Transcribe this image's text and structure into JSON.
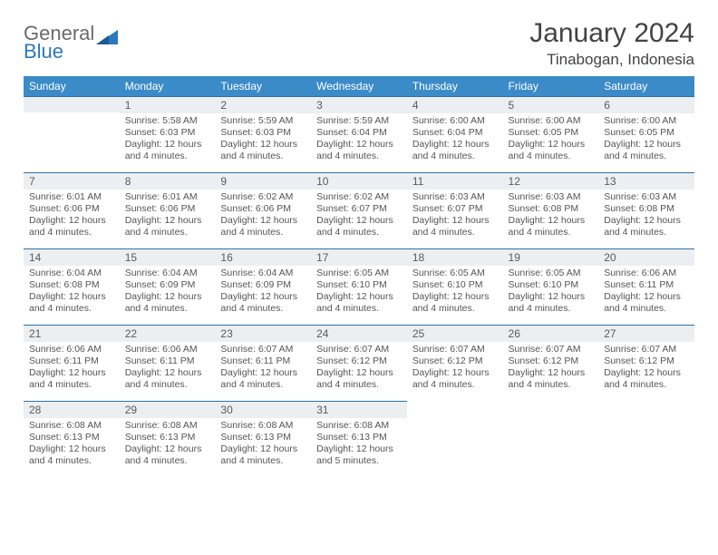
{
  "logo": {
    "word1": "General",
    "word2": "Blue"
  },
  "title": "January 2024",
  "location": "Tinabogan, Indonesia",
  "colors": {
    "header_bg": "#3b8bc9",
    "header_text": "#ffffff",
    "daynum_bg": "#eceff1",
    "row_border": "#2f6fa8",
    "body_text": "#555555",
    "logo_gray": "#6a6a6a",
    "logo_blue": "#2b78bf"
  },
  "weekdays": [
    "Sunday",
    "Monday",
    "Tuesday",
    "Wednesday",
    "Thursday",
    "Friday",
    "Saturday"
  ],
  "start_offset": 1,
  "days": [
    {
      "n": 1,
      "sunrise": "5:58 AM",
      "sunset": "6:03 PM",
      "daylight": "12 hours and 4 minutes."
    },
    {
      "n": 2,
      "sunrise": "5:59 AM",
      "sunset": "6:03 PM",
      "daylight": "12 hours and 4 minutes."
    },
    {
      "n": 3,
      "sunrise": "5:59 AM",
      "sunset": "6:04 PM",
      "daylight": "12 hours and 4 minutes."
    },
    {
      "n": 4,
      "sunrise": "6:00 AM",
      "sunset": "6:04 PM",
      "daylight": "12 hours and 4 minutes."
    },
    {
      "n": 5,
      "sunrise": "6:00 AM",
      "sunset": "6:05 PM",
      "daylight": "12 hours and 4 minutes."
    },
    {
      "n": 6,
      "sunrise": "6:00 AM",
      "sunset": "6:05 PM",
      "daylight": "12 hours and 4 minutes."
    },
    {
      "n": 7,
      "sunrise": "6:01 AM",
      "sunset": "6:06 PM",
      "daylight": "12 hours and 4 minutes."
    },
    {
      "n": 8,
      "sunrise": "6:01 AM",
      "sunset": "6:06 PM",
      "daylight": "12 hours and 4 minutes."
    },
    {
      "n": 9,
      "sunrise": "6:02 AM",
      "sunset": "6:06 PM",
      "daylight": "12 hours and 4 minutes."
    },
    {
      "n": 10,
      "sunrise": "6:02 AM",
      "sunset": "6:07 PM",
      "daylight": "12 hours and 4 minutes."
    },
    {
      "n": 11,
      "sunrise": "6:03 AM",
      "sunset": "6:07 PM",
      "daylight": "12 hours and 4 minutes."
    },
    {
      "n": 12,
      "sunrise": "6:03 AM",
      "sunset": "6:08 PM",
      "daylight": "12 hours and 4 minutes."
    },
    {
      "n": 13,
      "sunrise": "6:03 AM",
      "sunset": "6:08 PM",
      "daylight": "12 hours and 4 minutes."
    },
    {
      "n": 14,
      "sunrise": "6:04 AM",
      "sunset": "6:08 PM",
      "daylight": "12 hours and 4 minutes."
    },
    {
      "n": 15,
      "sunrise": "6:04 AM",
      "sunset": "6:09 PM",
      "daylight": "12 hours and 4 minutes."
    },
    {
      "n": 16,
      "sunrise": "6:04 AM",
      "sunset": "6:09 PM",
      "daylight": "12 hours and 4 minutes."
    },
    {
      "n": 17,
      "sunrise": "6:05 AM",
      "sunset": "6:10 PM",
      "daylight": "12 hours and 4 minutes."
    },
    {
      "n": 18,
      "sunrise": "6:05 AM",
      "sunset": "6:10 PM",
      "daylight": "12 hours and 4 minutes."
    },
    {
      "n": 19,
      "sunrise": "6:05 AM",
      "sunset": "6:10 PM",
      "daylight": "12 hours and 4 minutes."
    },
    {
      "n": 20,
      "sunrise": "6:06 AM",
      "sunset": "6:11 PM",
      "daylight": "12 hours and 4 minutes."
    },
    {
      "n": 21,
      "sunrise": "6:06 AM",
      "sunset": "6:11 PM",
      "daylight": "12 hours and 4 minutes."
    },
    {
      "n": 22,
      "sunrise": "6:06 AM",
      "sunset": "6:11 PM",
      "daylight": "12 hours and 4 minutes."
    },
    {
      "n": 23,
      "sunrise": "6:07 AM",
      "sunset": "6:11 PM",
      "daylight": "12 hours and 4 minutes."
    },
    {
      "n": 24,
      "sunrise": "6:07 AM",
      "sunset": "6:12 PM",
      "daylight": "12 hours and 4 minutes."
    },
    {
      "n": 25,
      "sunrise": "6:07 AM",
      "sunset": "6:12 PM",
      "daylight": "12 hours and 4 minutes."
    },
    {
      "n": 26,
      "sunrise": "6:07 AM",
      "sunset": "6:12 PM",
      "daylight": "12 hours and 4 minutes."
    },
    {
      "n": 27,
      "sunrise": "6:07 AM",
      "sunset": "6:12 PM",
      "daylight": "12 hours and 4 minutes."
    },
    {
      "n": 28,
      "sunrise": "6:08 AM",
      "sunset": "6:13 PM",
      "daylight": "12 hours and 4 minutes."
    },
    {
      "n": 29,
      "sunrise": "6:08 AM",
      "sunset": "6:13 PM",
      "daylight": "12 hours and 4 minutes."
    },
    {
      "n": 30,
      "sunrise": "6:08 AM",
      "sunset": "6:13 PM",
      "daylight": "12 hours and 4 minutes."
    },
    {
      "n": 31,
      "sunrise": "6:08 AM",
      "sunset": "6:13 PM",
      "daylight": "12 hours and 5 minutes."
    }
  ],
  "labels": {
    "sunrise_prefix": "Sunrise: ",
    "sunset_prefix": "Sunset: ",
    "daylight_prefix": "Daylight: "
  }
}
